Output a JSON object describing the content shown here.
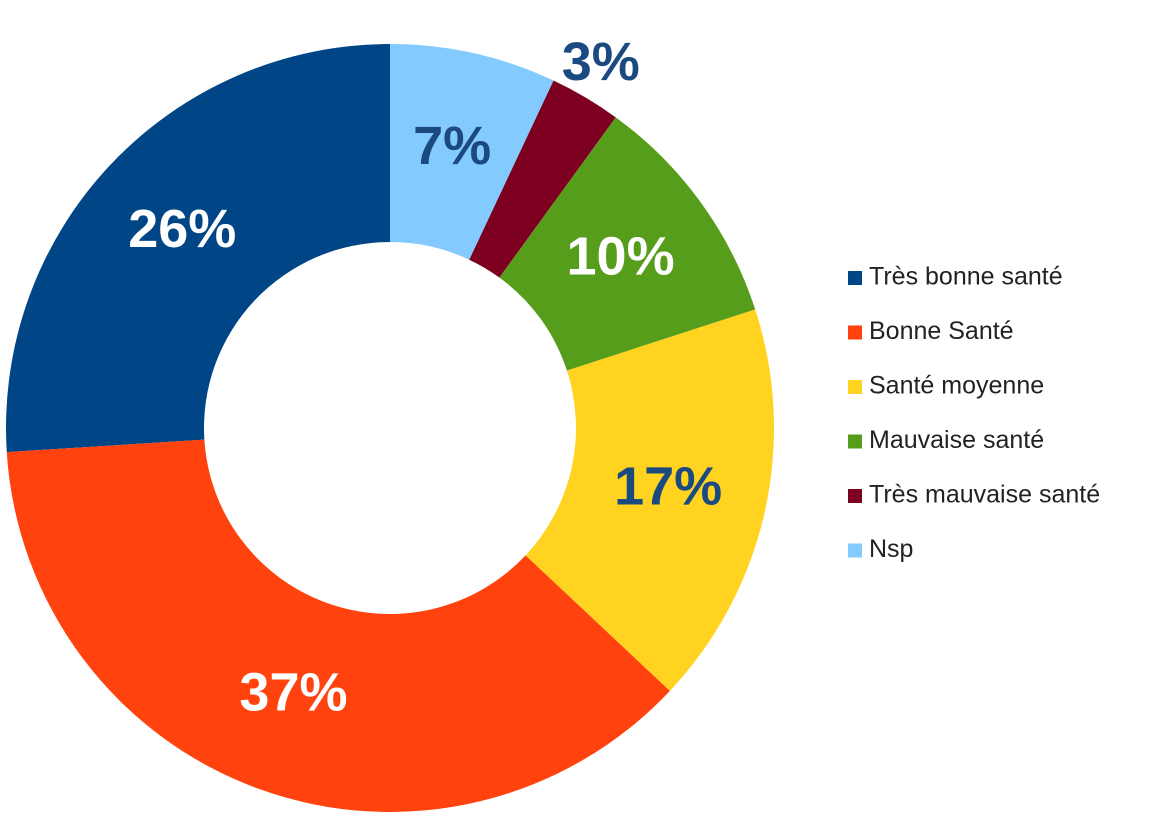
{
  "chart_data": {
    "type": "donut",
    "categories": [
      "Très bonne santé",
      "Bonne Santé",
      "Santé moyenne",
      "Mauvaise santé",
      "Très mauvaise santé",
      "Nsp"
    ],
    "values": [
      26,
      37,
      17,
      10,
      3,
      7
    ],
    "value_labels": [
      "26%",
      "37%",
      "17%",
      "10%",
      "3%",
      "7%"
    ],
    "colors": [
      "#004586",
      "#ff420e",
      "#ffd320",
      "#579d1c",
      "#7e0021",
      "#83caff"
    ],
    "label_colors": [
      "#ffffff",
      "#ffffff",
      "#1a4a80",
      "#ffffff",
      "#1a4a80",
      "#1a4a80"
    ],
    "direction": "counterclockwise",
    "legend": "right"
  }
}
